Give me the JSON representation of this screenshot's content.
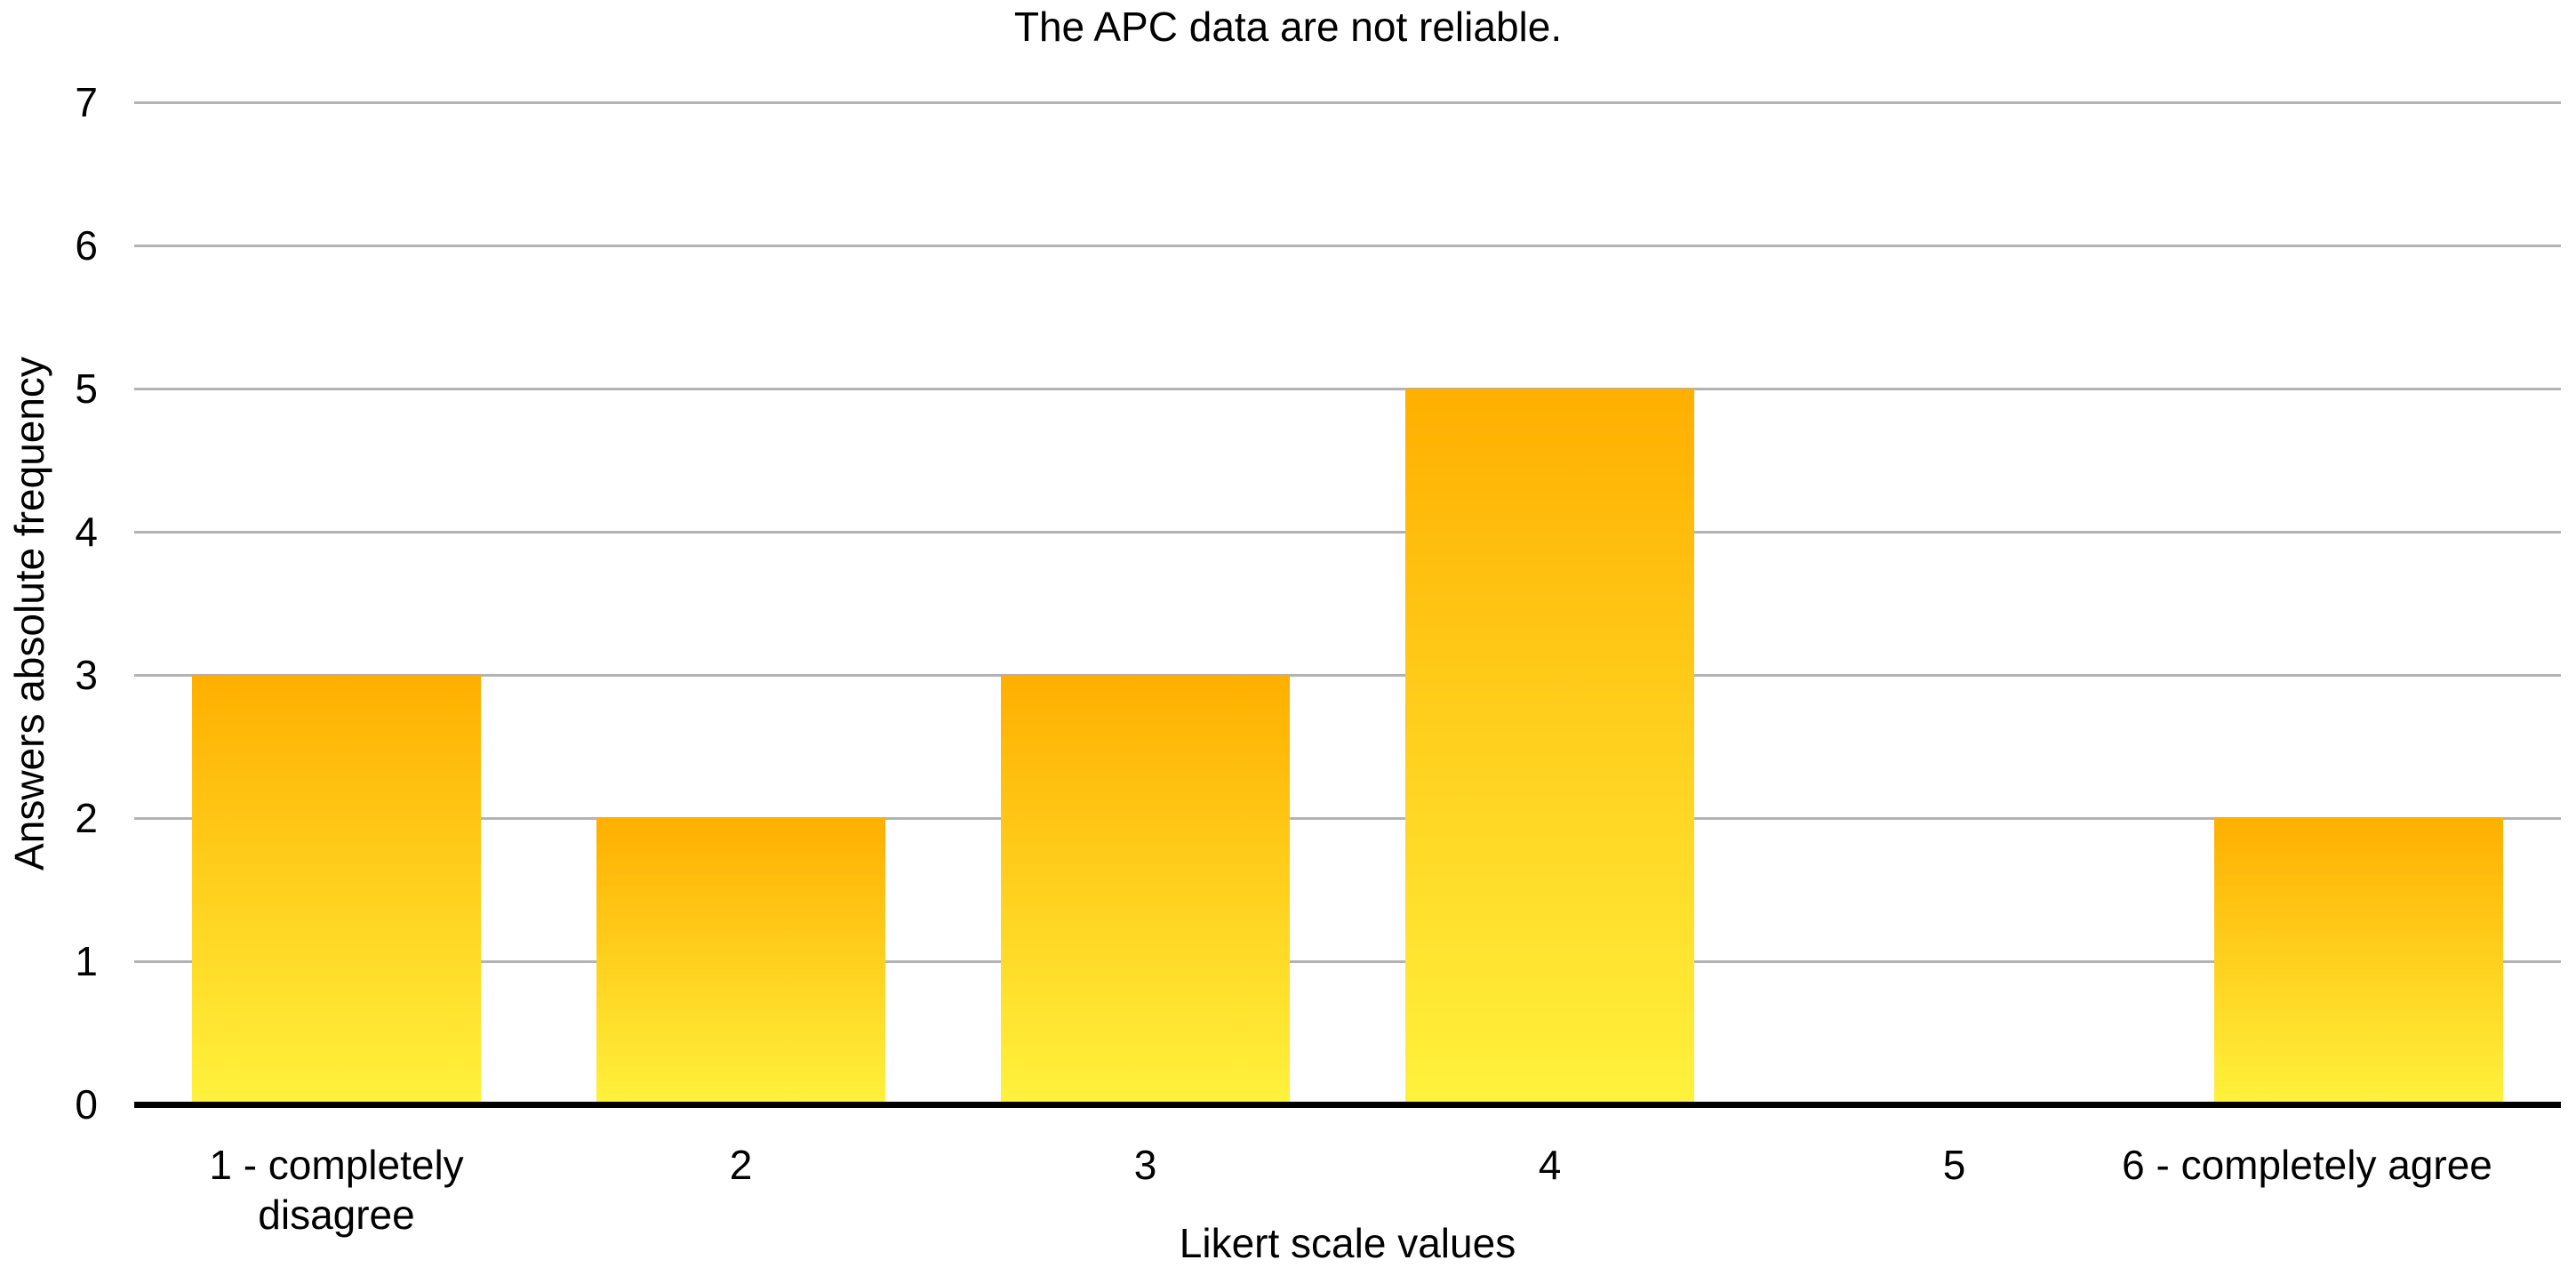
{
  "chart_data": {
    "type": "bar",
    "title": "The APC data are not reliable.",
    "xlabel": "Likert scale values",
    "ylabel": "Answers absolute frequency",
    "categories": [
      "1 - completely disagree",
      "2",
      "3",
      "4",
      "5",
      "6 - completely agree"
    ],
    "values": [
      3,
      2,
      3,
      5,
      0,
      2
    ],
    "ylim": [
      0,
      7
    ],
    "yticks": [
      0,
      1,
      2,
      3,
      4,
      5,
      6,
      7
    ],
    "grid": "horizontal",
    "legend_position": "none",
    "colors": {
      "bar_gradient_top": "#FFAF00",
      "bar_gradient_bottom": "#FFF23D",
      "gridline": "#B3B3B3",
      "axis_line": "#000000",
      "text": "#000000",
      "background": "#FFFFFF"
    }
  }
}
